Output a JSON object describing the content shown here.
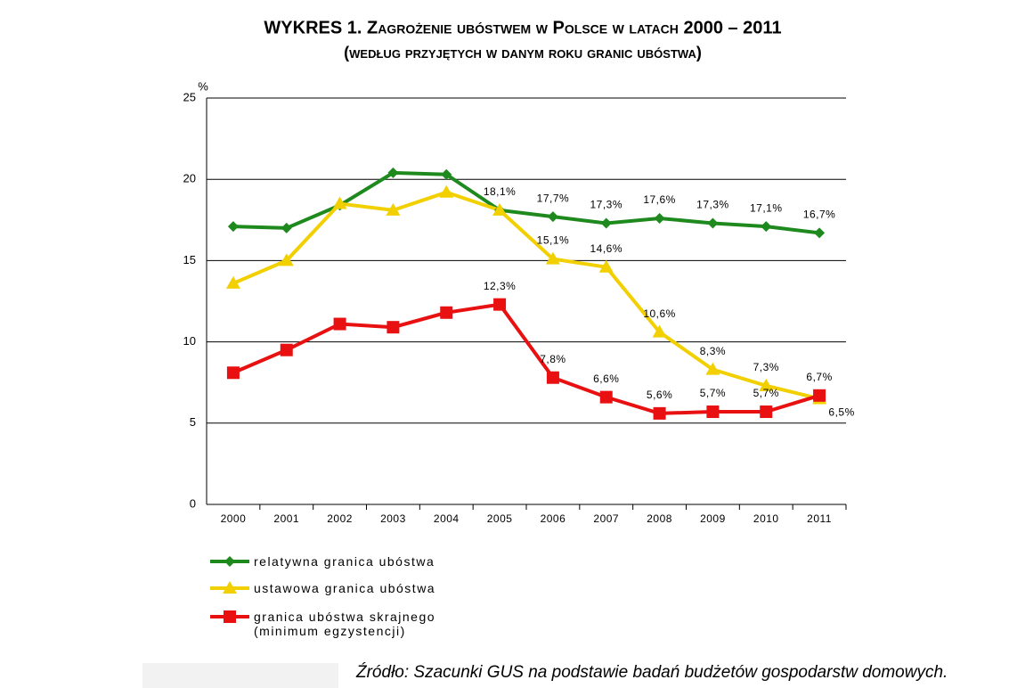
{
  "chart_data": {
    "type": "line",
    "title": "WYKRES 1. Zagrożenie ubóstwem w Polsce w latach 2000 – 2011",
    "subtitle": "(według przyjętych w danym roku granic ubóstwa)",
    "y_label": "%",
    "source": "Źródło: Szacunki GUS na podstawie badań budżetów gospodarstw domowych.",
    "categories": [
      "2000",
      "2001",
      "2002",
      "2003",
      "2004",
      "2005",
      "2006",
      "2007",
      "2008",
      "2009",
      "2010",
      "2011"
    ],
    "ylim": [
      0,
      25
    ],
    "yticks": [
      0,
      5,
      10,
      15,
      20,
      25
    ],
    "grid": true,
    "series": [
      {
        "name": "relatywna granica ubóstwa",
        "color": "#1e8a1e",
        "marker": "diamond",
        "values": [
          17.1,
          17.0,
          18.4,
          20.4,
          20.3,
          18.1,
          17.7,
          17.3,
          17.6,
          17.3,
          17.1,
          16.7
        ],
        "value_labels": [
          null,
          null,
          null,
          null,
          null,
          "18,1%",
          "17,7%",
          "17,3%",
          "17,6%",
          "17,3%",
          "17,1%",
          "16,7%"
        ]
      },
      {
        "name": "ustawowa granica ubóstwa",
        "color": "#f2d000",
        "marker": "triangle",
        "values": [
          13.6,
          15.0,
          18.5,
          18.1,
          19.2,
          18.1,
          15.1,
          14.6,
          10.6,
          8.3,
          7.3,
          6.5
        ],
        "value_labels": [
          null,
          null,
          null,
          null,
          null,
          null,
          "15,1%",
          "14,6%",
          "10,6%",
          "8,3%",
          "7,3%",
          "6,5%"
        ]
      },
      {
        "name": "granica ubóstwa skrajnego (minimum egzystencji)",
        "color": "#e81010",
        "marker": "square",
        "values": [
          8.1,
          9.5,
          11.1,
          10.9,
          11.8,
          12.3,
          7.8,
          6.6,
          5.6,
          5.7,
          5.7,
          6.7
        ],
        "value_labels": [
          null,
          null,
          null,
          null,
          null,
          "12,3%",
          "7,8%",
          "6,6%",
          "5,6%",
          "5,7%",
          "5,7%",
          "6,7%"
        ]
      }
    ]
  }
}
